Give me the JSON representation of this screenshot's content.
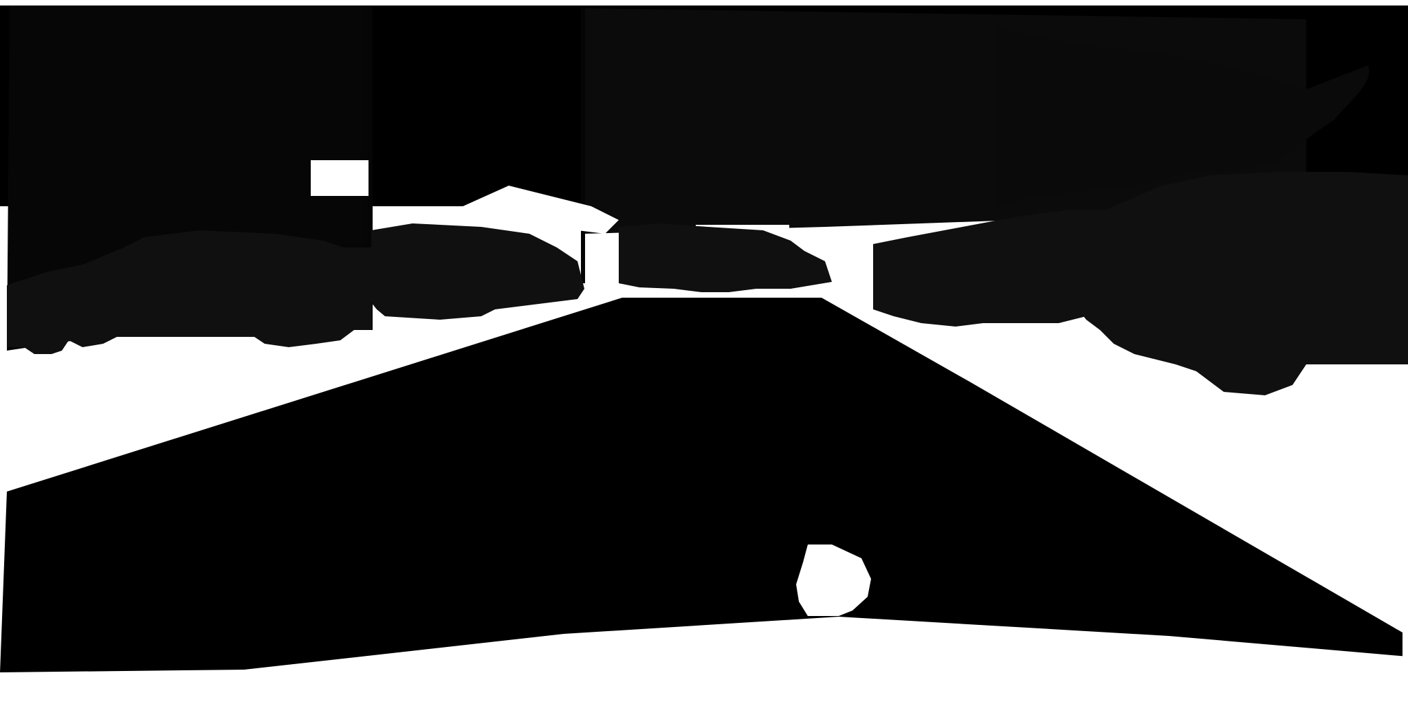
{
  "image": {
    "kind": "semantic segmentation mask of a street scene",
    "palette": {
      "background": "#ffffff",
      "road": "#000000",
      "sky": "#000000",
      "buildings": "#0b0b0b",
      "trees": "#0a0a0a",
      "vehicles": "#101010",
      "poles": "#050505",
      "signs": "#ffffff"
    },
    "regions": [
      "sky",
      "building-left",
      "building-center",
      "trees-right",
      "poles",
      "sign-left",
      "sign-center",
      "car-left",
      "van-left",
      "cars-center",
      "cars-right",
      "truck-right",
      "road",
      "ego-hood",
      "hood-ornament"
    ]
  }
}
